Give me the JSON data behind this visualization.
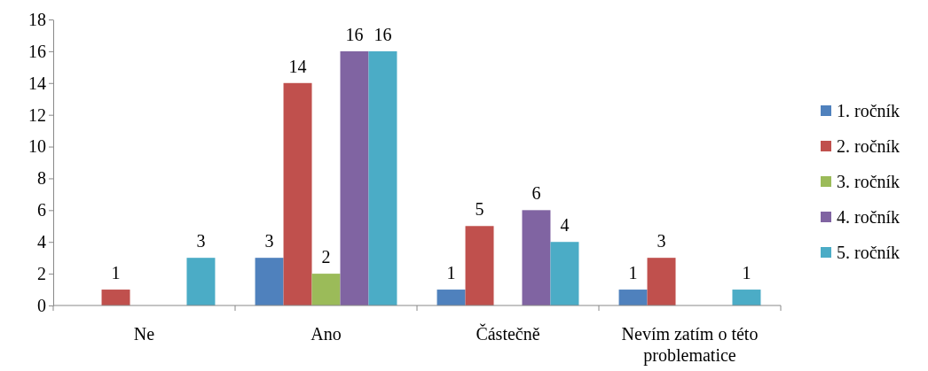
{
  "chart_data": {
    "type": "bar",
    "categories": [
      "Ne",
      "Ano",
      "Částečně",
      "Nevím zatím o této problematice"
    ],
    "series": [
      {
        "name": "1. ročník",
        "color": "#4f81bd",
        "values": [
          0,
          3,
          1,
          1
        ],
        "value_labels": [
          null,
          "3",
          "1",
          "1"
        ]
      },
      {
        "name": "2. ročník",
        "color": "#c0504d",
        "values": [
          1,
          14,
          5,
          3
        ],
        "value_labels": [
          "1",
          "14",
          "5",
          "3"
        ]
      },
      {
        "name": "3. ročník",
        "color": "#9bbb59",
        "values": [
          0,
          2,
          0,
          0
        ],
        "value_labels": [
          null,
          "2",
          null,
          null
        ]
      },
      {
        "name": "4. ročník",
        "color": "#8064a2",
        "values": [
          0,
          16,
          6,
          0
        ],
        "value_labels": [
          null,
          "16",
          "6",
          null
        ]
      },
      {
        "name": "5. ročník",
        "color": "#4bacc6",
        "values": [
          3,
          16,
          4,
          1
        ],
        "value_labels": [
          "3",
          "16",
          "4",
          "1"
        ]
      }
    ],
    "ylim": [
      0,
      18
    ],
    "yticks": [
      0,
      2,
      4,
      6,
      8,
      10,
      12,
      14,
      16,
      18
    ],
    "grid": false,
    "legend": "right"
  }
}
